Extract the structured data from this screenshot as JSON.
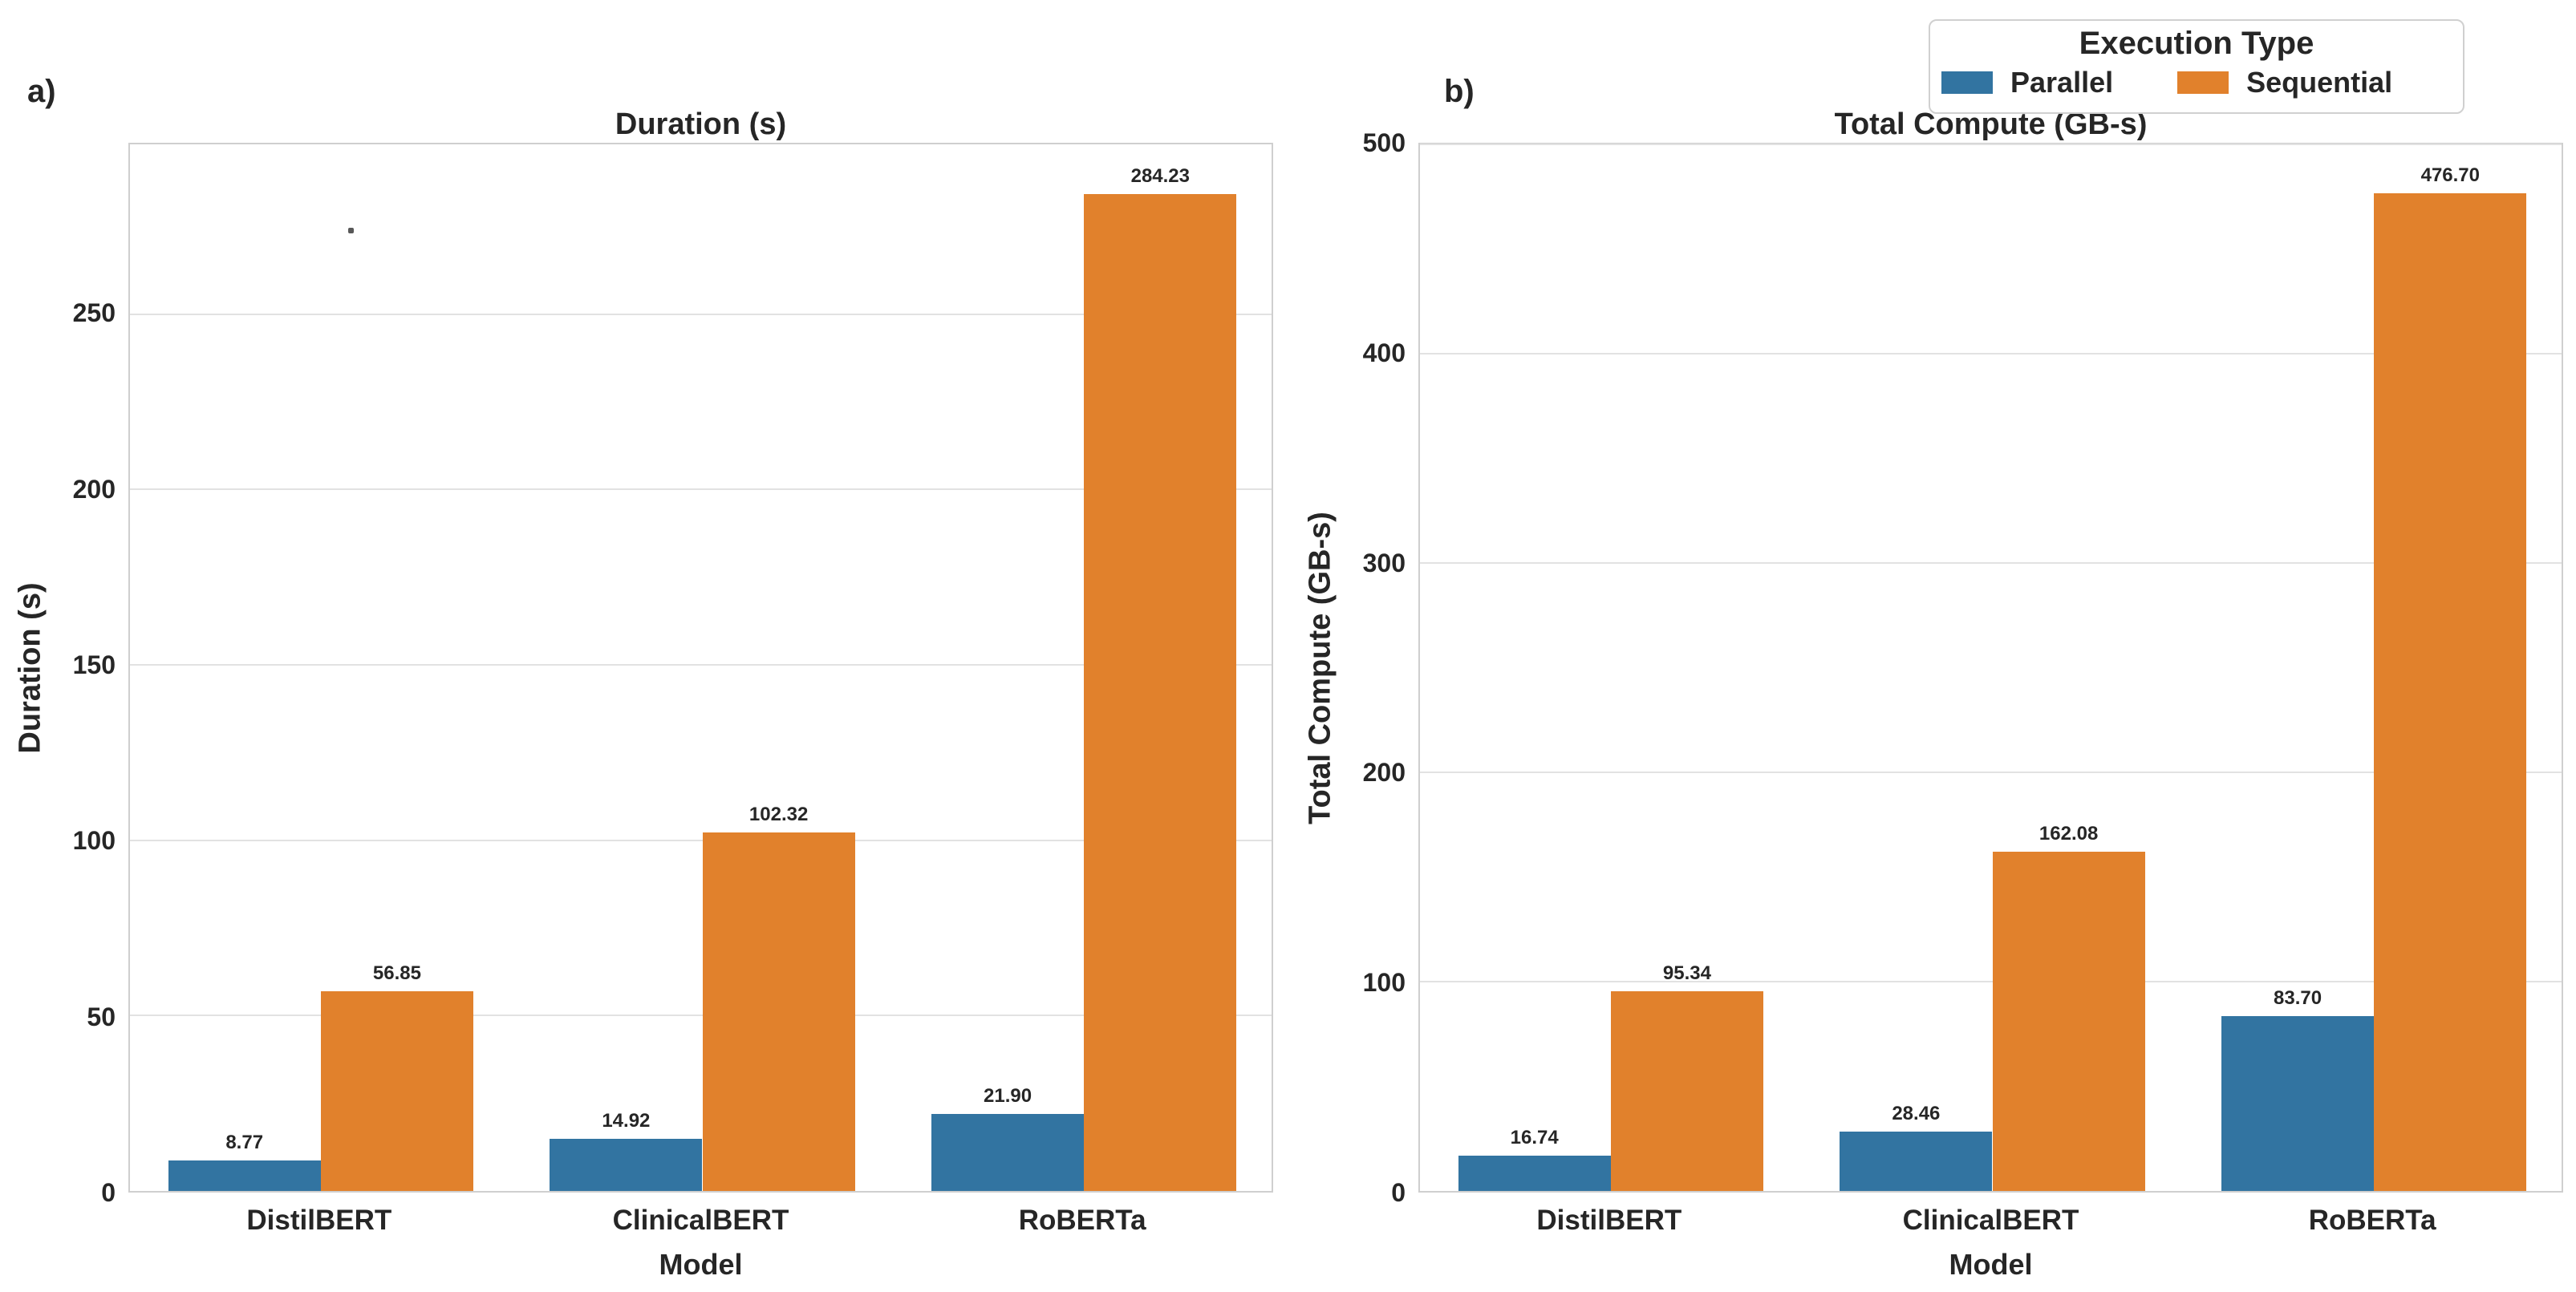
{
  "figure": {
    "panel_labels": [
      "a)",
      "b)"
    ],
    "legend": {
      "title": "Execution Type",
      "items": [
        {
          "label": "Parallel",
          "color": "#3274a1"
        },
        {
          "label": "Sequential",
          "color": "#e1812c"
        }
      ]
    },
    "colors": {
      "parallel": "#3274a1",
      "sequential": "#e1812c",
      "grid": "#e2e2e2",
      "axis_border": "#cfcfcf",
      "text": "#262626"
    }
  },
  "chart_data": [
    {
      "type": "bar",
      "panel": "a",
      "title": "Duration (s)",
      "xlabel": "Model",
      "ylabel": "Duration (s)",
      "categories": [
        "DistilBERT",
        "ClinicalBERT",
        "RoBERTa"
      ],
      "series": [
        {
          "name": "Parallel",
          "color": "#3274a1",
          "values": [
            8.77,
            14.92,
            21.9
          ],
          "labels": [
            "8.77",
            "14.92",
            "21.90"
          ]
        },
        {
          "name": "Sequential",
          "color": "#e1812c",
          "values": [
            56.85,
            102.32,
            284.23
          ],
          "labels": [
            "56.85",
            "102.32",
            "284.23"
          ]
        }
      ],
      "ylim": [
        0,
        298.4
      ],
      "yticks": [
        0,
        50,
        100,
        150,
        200,
        250
      ],
      "grid": true,
      "legend_position": "figure-top-right"
    },
    {
      "type": "bar",
      "panel": "b",
      "title": "Total Compute (GB-s)",
      "xlabel": "Model",
      "ylabel": "Total Compute (GB-s)",
      "categories": [
        "DistilBERT",
        "ClinicalBERT",
        "RoBERTa"
      ],
      "series": [
        {
          "name": "Parallel",
          "color": "#3274a1",
          "values": [
            16.74,
            28.46,
            83.7
          ],
          "labels": [
            "16.74",
            "28.46",
            "83.70"
          ]
        },
        {
          "name": "Sequential",
          "color": "#e1812c",
          "values": [
            95.34,
            162.08,
            476.7
          ],
          "labels": [
            "95.34",
            "162.08",
            "476.70"
          ]
        }
      ],
      "ylim": [
        0,
        500
      ],
      "yticks": [
        0,
        100,
        200,
        300,
        400,
        500
      ],
      "grid": true
    }
  ]
}
